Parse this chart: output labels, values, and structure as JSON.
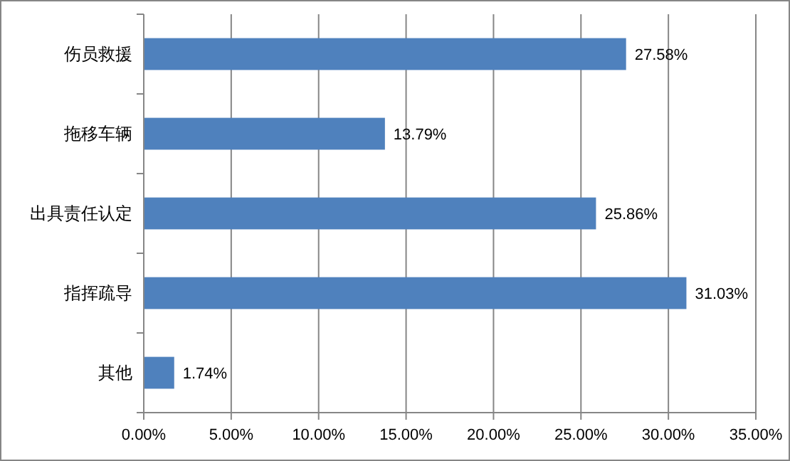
{
  "chart_data": {
    "type": "bar",
    "orientation": "horizontal",
    "categories": [
      "伤员救援",
      "拖移车辆",
      "出具责任认定",
      "指挥疏导",
      "其他"
    ],
    "values": [
      27.58,
      13.79,
      25.86,
      31.03,
      1.74
    ],
    "color": "#4f81bd",
    "value_labels": [
      "27.58%",
      "13.79%",
      "25.86%",
      "31.03%",
      "1.74%"
    ],
    "xlim": [
      0,
      35
    ],
    "xticks": [
      {
        "value": 0,
        "label": "0.00%"
      },
      {
        "value": 5,
        "label": "5.00%"
      },
      {
        "value": 10,
        "label": "10.00%"
      },
      {
        "value": 15,
        "label": "15.00%"
      },
      {
        "value": 20,
        "label": "20.00%"
      },
      {
        "value": 25,
        "label": "25.00%"
      },
      {
        "value": 30,
        "label": "30.00%"
      },
      {
        "value": 35,
        "label": "35.00%"
      }
    ],
    "grid": "x"
  }
}
